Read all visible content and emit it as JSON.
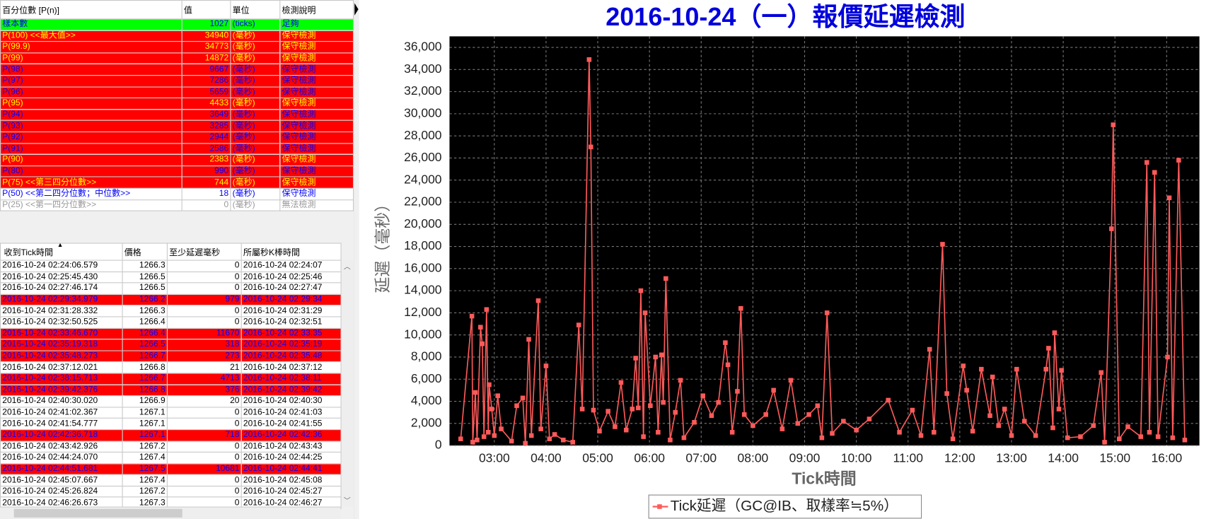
{
  "percentile_table": {
    "columns": [
      "百分位數 [P(n)]",
      "值",
      "單位",
      "檢測說明"
    ],
    "rows": [
      {
        "label": "樣本數",
        "value": 1027,
        "unit": "(ticks)",
        "note": "足夠",
        "bg": "#00ff00",
        "fg": "#0000ff",
        "bold": false
      },
      {
        "label": "P(100)  <<最大值>>",
        "value": 34940,
        "unit": "(毫秒)",
        "note": "保守檢測",
        "bg": "#ff0000",
        "fg": "#ffff00",
        "bold": true
      },
      {
        "label": "P(99.9)",
        "value": 34773,
        "unit": "(毫秒)",
        "note": "保守檢測",
        "bg": "#ff0000",
        "fg": "#ffff00",
        "bold": true
      },
      {
        "label": "P(99)",
        "value": 14872,
        "unit": "(毫秒)",
        "note": "保守檢測",
        "bg": "#ff0000",
        "fg": "#ffff00",
        "bold": true
      },
      {
        "label": "P(98)",
        "value": 9667,
        "unit": "(毫秒)",
        "note": "保守檢測",
        "bg": "#ff0000",
        "fg": "#0000ff",
        "bold": false
      },
      {
        "label": "P(97)",
        "value": 7286,
        "unit": "(毫秒)",
        "note": "保守檢測",
        "bg": "#ff0000",
        "fg": "#0000ff",
        "bold": false
      },
      {
        "label": "P(96)",
        "value": 5659,
        "unit": "(毫秒)",
        "note": "保守檢測",
        "bg": "#ff0000",
        "fg": "#0000ff",
        "bold": false
      },
      {
        "label": "P(95)",
        "value": 4433,
        "unit": "(毫秒)",
        "note": "保守檢測",
        "bg": "#ff0000",
        "fg": "#ffff00",
        "bold": true
      },
      {
        "label": "P(94)",
        "value": 3649,
        "unit": "(毫秒)",
        "note": "保守檢測",
        "bg": "#ff0000",
        "fg": "#0000ff",
        "bold": false
      },
      {
        "label": "P(93)",
        "value": 3285,
        "unit": "(毫秒)",
        "note": "保守檢測",
        "bg": "#ff0000",
        "fg": "#0000ff",
        "bold": false
      },
      {
        "label": "P(92)",
        "value": 2944,
        "unit": "(毫秒)",
        "note": "保守檢測",
        "bg": "#ff0000",
        "fg": "#0000ff",
        "bold": false
      },
      {
        "label": "P(91)",
        "value": 2586,
        "unit": "(毫秒)",
        "note": "保守檢測",
        "bg": "#ff0000",
        "fg": "#0000ff",
        "bold": false
      },
      {
        "label": "P(90)",
        "value": 2383,
        "unit": "(毫秒)",
        "note": "保守檢測",
        "bg": "#ff0000",
        "fg": "#ffff00",
        "bold": true
      },
      {
        "label": "P(80)",
        "value": 990,
        "unit": "(毫秒)",
        "note": "保守檢測",
        "bg": "#ff0000",
        "fg": "#0000ff",
        "bold": false
      },
      {
        "label": "P(75)  <<第三四分位數>>",
        "value": 744,
        "unit": "(毫秒)",
        "note": "保守檢測",
        "bg": "#ff0000",
        "fg": "#ffff00",
        "bold": true
      },
      {
        "label": "P(50)  <<第二四分位數；中位數>>",
        "value": 18,
        "unit": "(毫秒)",
        "note": "保守檢測",
        "bg": "#ffffff",
        "fg": "#0000ff",
        "bold": true
      },
      {
        "label": "P(25)  <<第一四分位數>>",
        "value": 0,
        "unit": "(毫秒)",
        "note": "無法檢測",
        "bg": "#ffffff",
        "fg": "#999999",
        "bold": false
      }
    ]
  },
  "tick_table": {
    "columns": [
      "收到Tick時間",
      "價格",
      "至少延遲毫秒",
      "所屬秒K棒時間"
    ],
    "rows": [
      {
        "cells": [
          "2016-10-24 02:24:06.579",
          1266.3,
          0,
          "2016-10-24 02:24:07"
        ],
        "bg": "#ffffff",
        "fg": "#000000"
      },
      {
        "cells": [
          "2016-10-24 02:25:45.430",
          1266.5,
          0,
          "2016-10-24 02:25:46"
        ],
        "bg": "#ffffff",
        "fg": "#000000"
      },
      {
        "cells": [
          "2016-10-24 02:27:46.174",
          1266.5,
          0,
          "2016-10-24 02:27:47"
        ],
        "bg": "#ffffff",
        "fg": "#000000"
      },
      {
        "cells": [
          "2016-10-24 02:29:34.979",
          1266.2,
          979,
          "2016-10-24 02:29:34"
        ],
        "bg": "#ff0000",
        "fg": "#0000ff"
      },
      {
        "cells": [
          "2016-10-24 02:31:28.332",
          1266.3,
          0,
          "2016-10-24 02:31:29"
        ],
        "bg": "#ffffff",
        "fg": "#000000"
      },
      {
        "cells": [
          "2016-10-24 02:32:50.525",
          1266.4,
          0,
          "2016-10-24 02:32:51"
        ],
        "bg": "#ffffff",
        "fg": "#000000"
      },
      {
        "cells": [
          "2016-10-24 02:33:46.670",
          1266.4,
          11670,
          "2016-10-24 02:33:35"
        ],
        "bg": "#ff0000",
        "fg": "#0000ff"
      },
      {
        "cells": [
          "2016-10-24 02:35:19.318",
          1266.5,
          318,
          "2016-10-24 02:35:19"
        ],
        "bg": "#ff0000",
        "fg": "#0000ff"
      },
      {
        "cells": [
          "2016-10-24 02:35:48.273",
          1266.7,
          273,
          "2016-10-24 02:35:48"
        ],
        "bg": "#ff0000",
        "fg": "#0000ff"
      },
      {
        "cells": [
          "2016-10-24 02:37:12.021",
          1266.8,
          21,
          "2016-10-24 02:37:12"
        ],
        "bg": "#ffffff",
        "fg": "#000000"
      },
      {
        "cells": [
          "2016-10-24 02:38:15.713",
          1266.7,
          4713,
          "2016-10-24 02:38:11"
        ],
        "bg": "#ff0000",
        "fg": "#0000ff"
      },
      {
        "cells": [
          "2016-10-24 02:39:42.376",
          1266.8,
          376,
          "2016-10-24 02:39:42"
        ],
        "bg": "#ff0000",
        "fg": "#0000ff"
      },
      {
        "cells": [
          "2016-10-24 02:40:30.020",
          1266.9,
          20,
          "2016-10-24 02:40:30"
        ],
        "bg": "#ffffff",
        "fg": "#000000"
      },
      {
        "cells": [
          "2016-10-24 02:41:02.367",
          1267.1,
          0,
          "2016-10-24 02:41:03"
        ],
        "bg": "#ffffff",
        "fg": "#000000"
      },
      {
        "cells": [
          "2016-10-24 02:41:54.777",
          1267.1,
          0,
          "2016-10-24 02:41:55"
        ],
        "bg": "#ffffff",
        "fg": "#000000"
      },
      {
        "cells": [
          "2016-10-24 02:42:36.718",
          1267.1,
          718,
          "2016-10-24 02:42:36"
        ],
        "bg": "#ff0000",
        "fg": "#0000ff"
      },
      {
        "cells": [
          "2016-10-24 02:43:42.926",
          1267.2,
          0,
          "2016-10-24 02:43:43"
        ],
        "bg": "#ffffff",
        "fg": "#000000"
      },
      {
        "cells": [
          "2016-10-24 02:44:24.070",
          1267.4,
          0,
          "2016-10-24 02:44:25"
        ],
        "bg": "#ffffff",
        "fg": "#000000"
      },
      {
        "cells": [
          "2016-10-24 02:44:51.681",
          1267.5,
          10681,
          "2016-10-24 02:44:41"
        ],
        "bg": "#ff0000",
        "fg": "#0000ff"
      },
      {
        "cells": [
          "2016-10-24 02:45:07.667",
          1267.4,
          0,
          "2016-10-24 02:45:08"
        ],
        "bg": "#ffffff",
        "fg": "#000000"
      },
      {
        "cells": [
          "2016-10-24 02:45:26.824",
          1267.2,
          0,
          "2016-10-24 02:45:27"
        ],
        "bg": "#ffffff",
        "fg": "#000000"
      },
      {
        "cells": [
          "2016-10-24 02:46:26.673",
          1267.3,
          0,
          "2016-10-24 02:46:27"
        ],
        "bg": "#ffffff",
        "fg": "#000000"
      }
    ]
  },
  "chart_data": {
    "type": "line",
    "title": "2016-10-24（一）報價延遲檢測",
    "x_label": "Tick時間",
    "y_label": "延遲（毫秒）",
    "grid": true,
    "background": "#000000",
    "xlim": [
      "02:08",
      "16:38"
    ],
    "xticks": [
      "03:00",
      "04:00",
      "05:00",
      "06:00",
      "07:00",
      "08:00",
      "09:00",
      "10:00",
      "11:00",
      "12:00",
      "13:00",
      "14:00",
      "15:00",
      "16:00"
    ],
    "ylim": [
      0,
      37000
    ],
    "yticks": [
      0,
      {
        "value": 2000,
        "label": "2,000"
      },
      {
        "value": 4000,
        "label": "4,000"
      },
      {
        "value": 6000,
        "label": "6,000"
      },
      {
        "value": 8000,
        "label": "8,000"
      },
      {
        "value": 10000,
        "label": "10,000"
      },
      {
        "value": 12000,
        "label": "12,000"
      },
      {
        "value": 14000,
        "label": "14,000"
      },
      {
        "value": 16000,
        "label": "16,000"
      },
      {
        "value": 18000,
        "label": "18,000"
      },
      {
        "value": 20000,
        "label": "20,000"
      },
      {
        "value": 22000,
        "label": "22,000"
      },
      {
        "value": 24000,
        "label": "24,000"
      },
      {
        "value": 26000,
        "label": "26,000"
      },
      {
        "value": 28000,
        "label": "28,000"
      },
      {
        "value": 30000,
        "label": "30,000"
      },
      {
        "value": 32000,
        "label": "32,000"
      },
      {
        "value": 34000,
        "label": "34,000"
      },
      {
        "value": 36000,
        "label": "36,000"
      }
    ],
    "x": [
      "02:21",
      "02:34",
      "02:35",
      "02:38",
      "02:40",
      "02:44",
      "02:46",
      "02:48",
      "02:51",
      "02:53",
      "02:54",
      "02:57",
      "03:00",
      "03:04",
      "03:08",
      "03:20",
      "03:26",
      "03:33",
      "03:36",
      "03:40",
      "03:43",
      "03:51",
      "03:54",
      "04:00",
      "04:04",
      "04:10",
      "04:20",
      "04:31",
      "04:38",
      "04:42",
      "04:50",
      "04:52",
      "04:55",
      "05:02",
      "05:12",
      "05:20",
      "05:27",
      "05:33",
      "05:40",
      "05:44",
      "05:47",
      "05:50",
      "05:53",
      "05:55",
      "06:01",
      "06:07",
      "06:10",
      "06:14",
      "06:16",
      "06:19",
      "06:24",
      "06:30",
      "06:36",
      "06:40",
      "06:52",
      "07:02",
      "07:12",
      "07:20",
      "07:28",
      "07:31",
      "07:36",
      "07:42",
      "07:46",
      "07:50",
      "08:00",
      "08:15",
      "08:24",
      "08:34",
      "08:44",
      "08:52",
      "09:05",
      "09:15",
      "09:20",
      "09:26",
      "09:32",
      "09:45",
      "10:00",
      "10:15",
      "10:37",
      "10:50",
      "11:05",
      "11:15",
      "11:25",
      "11:30",
      "11:40",
      "11:45",
      "11:52",
      "12:04",
      "12:08",
      "12:15",
      "12:25",
      "12:35",
      "12:38",
      "12:45",
      "12:52",
      "13:00",
      "13:06",
      "13:15",
      "13:28",
      "13:40",
      "13:43",
      "13:48",
      "13:50",
      "13:55",
      "13:58",
      "14:05",
      "14:20",
      "14:35",
      "14:44",
      "14:48",
      "14:56",
      "14:58",
      "15:05",
      "15:15",
      "15:30",
      "15:37",
      "15:40",
      "15:46",
      "15:50",
      "16:01",
      "16:03",
      "16:07",
      "16:14",
      "16:21"
    ],
    "series": [
      {
        "name": "Tick延遲（GC@IB、取樣率≒5%）",
        "color": "#ff5a5a",
        "values": [
          600,
          11700,
          300,
          4800,
          500,
          10700,
          9200,
          800,
          12300,
          1200,
          5500,
          3300,
          900,
          4500,
          1500,
          400,
          3600,
          4300,
          200,
          9600,
          900,
          13100,
          1500,
          7200,
          600,
          1000,
          500,
          300,
          10900,
          3300,
          34900,
          27000,
          3200,
          1300,
          3100,
          1700,
          5700,
          1400,
          3300,
          7900,
          3400,
          14000,
          800,
          12000,
          3600,
          8000,
          1200,
          8200,
          3900,
          15100,
          500,
          3000,
          5900,
          700,
          2100,
          4500,
          2700,
          3900,
          9300,
          7300,
          1200,
          4900,
          12400,
          2800,
          1800,
          2800,
          5000,
          1500,
          5900,
          2000,
          2800,
          3600,
          700,
          12000,
          1100,
          2200,
          1400,
          2400,
          4100,
          1200,
          3200,
          900,
          8700,
          1200,
          18200,
          4700,
          600,
          7200,
          5000,
          1300,
          6900,
          2700,
          6200,
          1800,
          3300,
          900,
          6900,
          2200,
          900,
          6900,
          8800,
          1600,
          10200,
          3300,
          6800,
          700,
          800,
          1800,
          6600,
          300,
          19600,
          29000,
          600,
          1700,
          800,
          25600,
          1200,
          24700,
          800,
          8000,
          22400,
          700,
          25800,
          500
        ]
      }
    ]
  }
}
